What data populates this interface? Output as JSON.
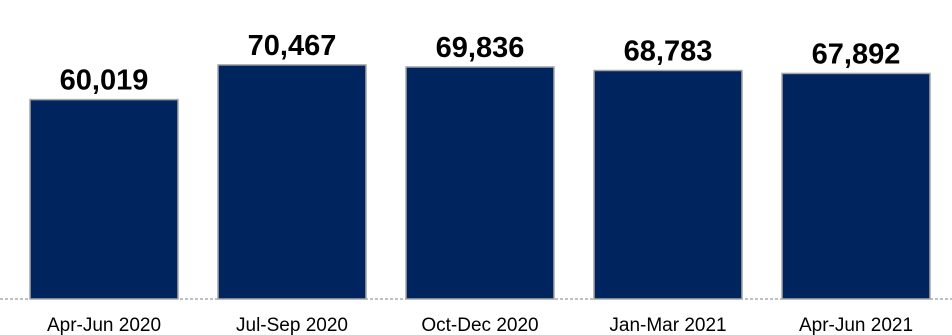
{
  "chart_data": {
    "type": "bar",
    "categories": [
      "Apr-Jun 2020",
      "Jul-Sep 2020",
      "Oct-Dec 2020",
      "Jan-Mar 2021",
      "Apr-Jun 2021"
    ],
    "values": [
      60019,
      70467,
      69836,
      68783,
      67892
    ],
    "value_labels": [
      "60,019",
      "70,467",
      "69,836",
      "68,783",
      "67,892"
    ],
    "title": "",
    "xlabel": "",
    "ylabel": "",
    "ylim": [
      0,
      90000
    ],
    "grid": false,
    "legend": "none",
    "colors": {
      "bar": "#00245d",
      "bar_edge": "#a6a6a6",
      "baseline": "#808080"
    }
  }
}
